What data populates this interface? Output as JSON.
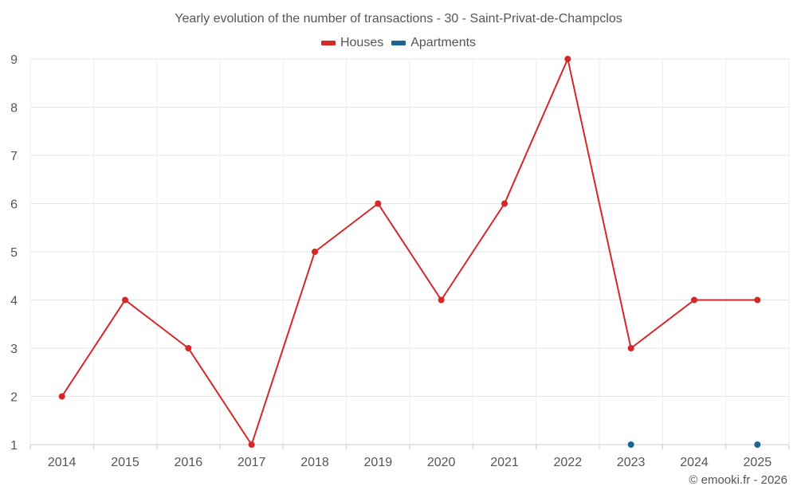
{
  "chart_data": {
    "type": "line",
    "title": "Yearly evolution of the number of transactions - 30 - Saint-Privat-de-Champclos",
    "xlabel": "",
    "ylabel": "",
    "categories": [
      "2014",
      "2015",
      "2016",
      "2017",
      "2018",
      "2019",
      "2020",
      "2021",
      "2022",
      "2023",
      "2024",
      "2025"
    ],
    "ylim": [
      1,
      9
    ],
    "yticks": [
      "1",
      "2",
      "3",
      "4",
      "5",
      "6",
      "7",
      "8",
      "9"
    ],
    "grid": true,
    "legend_position": "top-center",
    "series": [
      {
        "name": "Houses",
        "color": "#d62728",
        "values": [
          2,
          4,
          3,
          1,
          5,
          6,
          4,
          6,
          9,
          3,
          4,
          4
        ]
      },
      {
        "name": "Apartments",
        "color": "#1a6496",
        "values": [
          null,
          null,
          null,
          null,
          null,
          null,
          null,
          null,
          null,
          1,
          null,
          1
        ]
      }
    ]
  },
  "footer": {
    "credit": "© emooki.fr - 2026"
  }
}
